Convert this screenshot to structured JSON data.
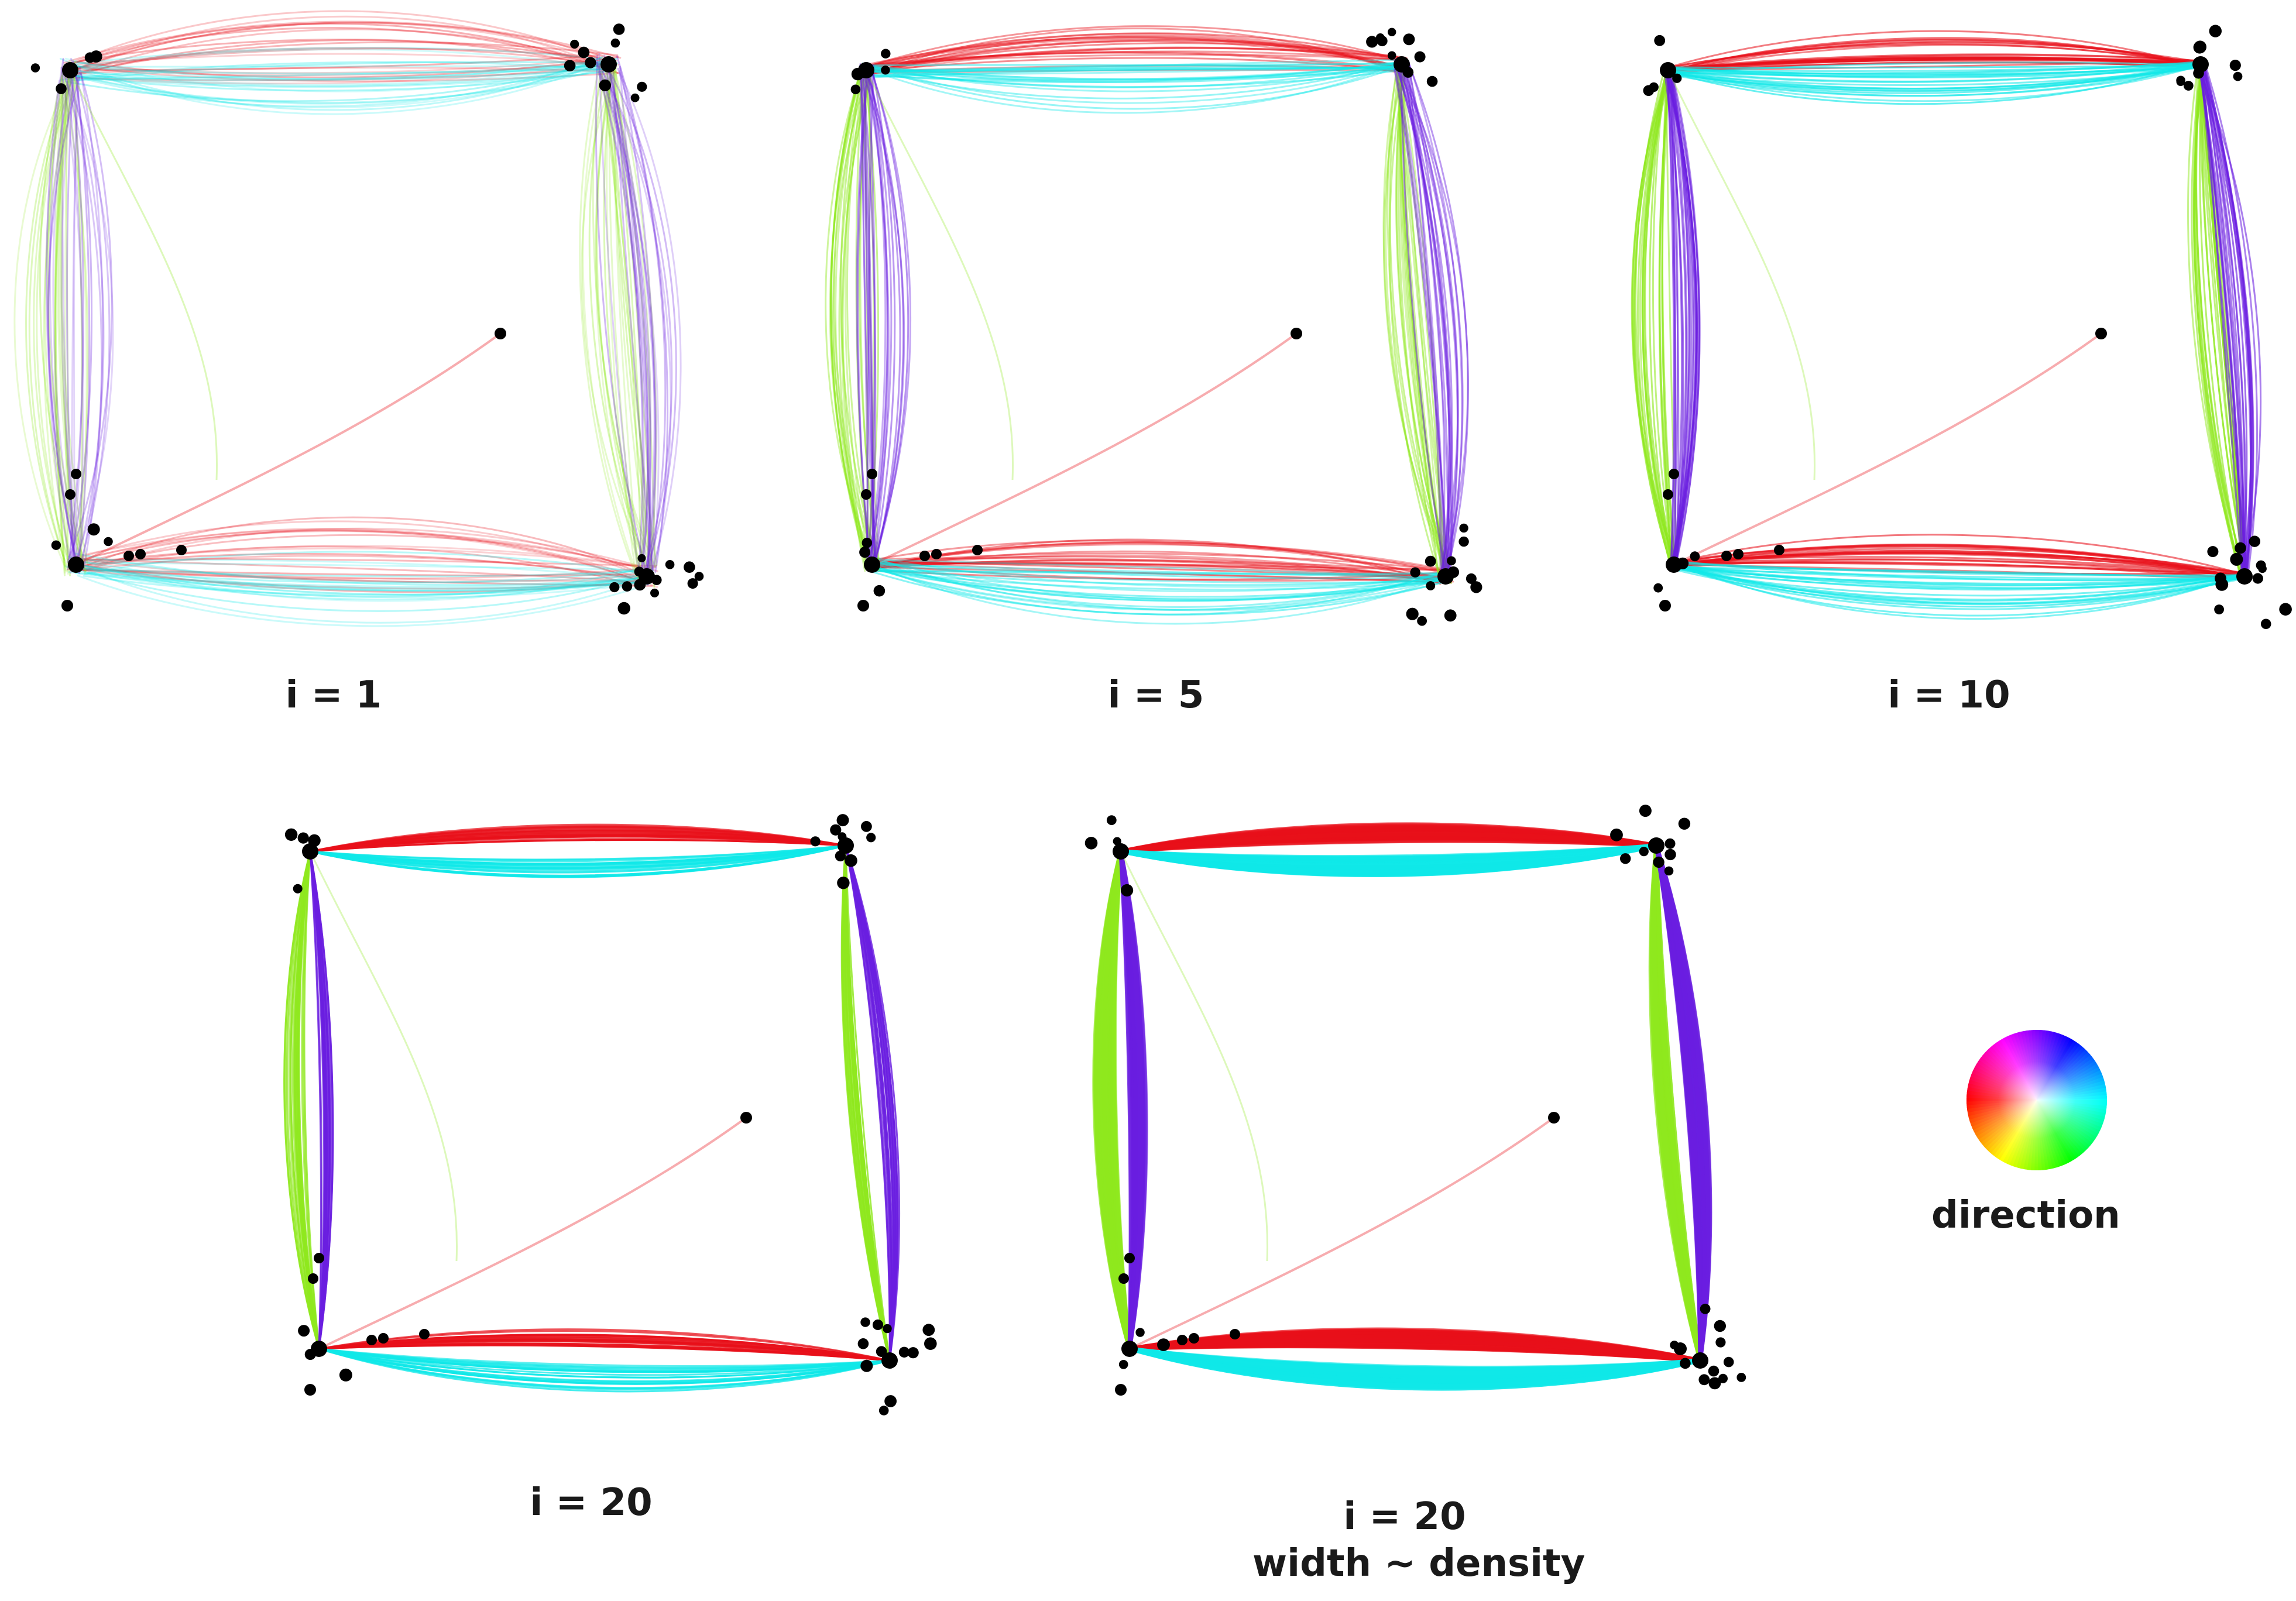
{
  "panels": [
    {
      "id": "p1",
      "caption": "i = 1",
      "bundling": 0.0,
      "density_width": false
    },
    {
      "id": "p2",
      "caption": "i = 5",
      "bundling": 0.35,
      "density_width": false
    },
    {
      "id": "p3",
      "caption": "i = 10",
      "bundling": 0.65,
      "density_width": false
    },
    {
      "id": "p4",
      "caption": "i = 20",
      "bundling": 1.0,
      "density_width": false
    },
    {
      "id": "p5",
      "caption": "i = 20",
      "caption_line2": "width ~ density",
      "bundling": 1.0,
      "density_width": true
    }
  ],
  "legend": {
    "label": "direction",
    "icon": "color-wheel-icon"
  },
  "direction_colors": {
    "right": "#e8101a",
    "left": "#10e8e8",
    "down": "#8fe81e",
    "up": "#6a1ee0"
  },
  "node_color": "#000000"
}
